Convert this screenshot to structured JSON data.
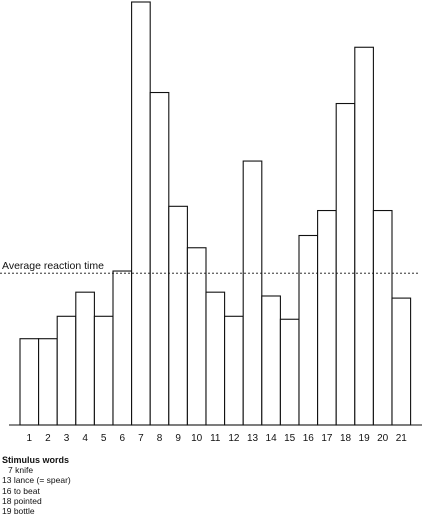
{
  "chart_data": {
    "type": "bar",
    "title": "",
    "xlabel": "",
    "ylabel": "",
    "categories": [
      "1",
      "2",
      "3",
      "4",
      "5",
      "6",
      "7",
      "8",
      "9",
      "10",
      "11",
      "12",
      "13",
      "14",
      "15",
      "16",
      "17",
      "18",
      "19",
      "20",
      "21"
    ],
    "values": [
      0.204,
      0.204,
      0.257,
      0.314,
      0.257,
      0.364,
      1.0,
      0.786,
      0.517,
      0.419,
      0.314,
      0.257,
      0.624,
      0.305,
      0.25,
      0.448,
      0.507,
      0.76,
      0.893,
      0.507,
      0.3
    ],
    "ylim": [
      0,
      1
    ],
    "grid": false,
    "average_reaction_time": 0.359,
    "average_label": "Average reaction time",
    "bar_fill": "#ffffff",
    "bar_stroke": "#111111",
    "legend": {
      "title": "Stimulus words",
      "items": [
        "7 knife",
        "13 lance (= spear)",
        "16 to beat",
        "18 pointed",
        "19 bottle"
      ]
    }
  }
}
